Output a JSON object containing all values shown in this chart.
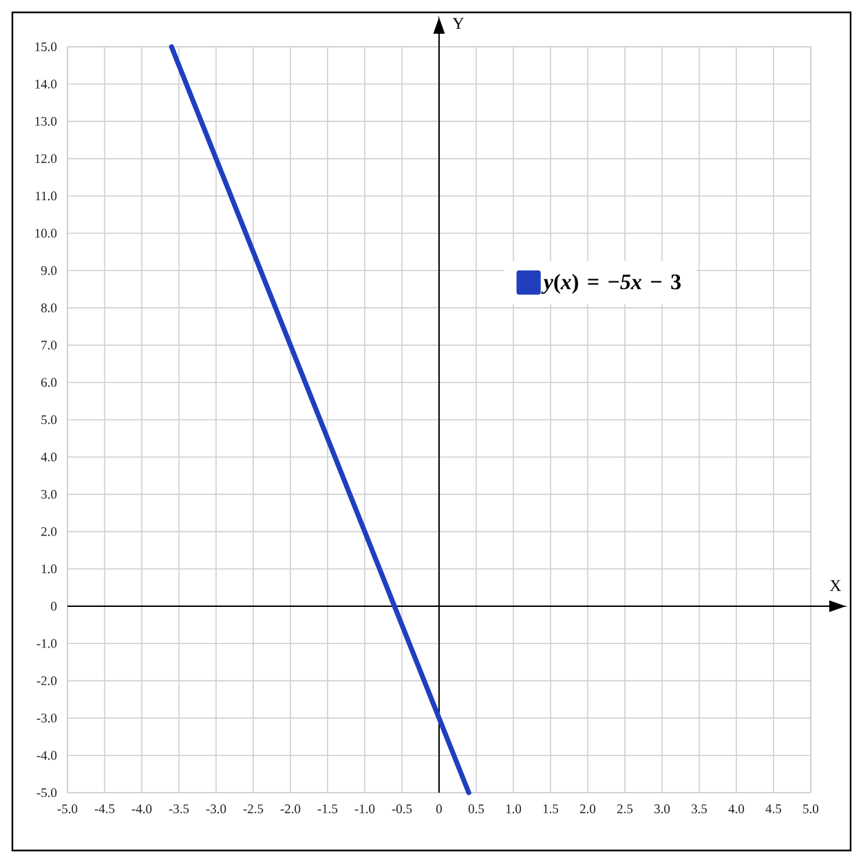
{
  "chart_data": {
    "type": "line",
    "xlabel": "X",
    "ylabel": "Y",
    "series": [
      {
        "name": "*y*(*x*) = −*5x* − 3",
        "color": "#1f3fbf",
        "x": [
          -3.6,
          0.4
        ],
        "values": [
          15,
          -5
        ]
      }
    ],
    "xlim": [
      -5,
      5
    ],
    "ylim": [
      -5,
      15
    ],
    "xticks": [
      {
        "value": -5,
        "label": "-5.0"
      },
      -4.5,
      {
        "value": -4,
        "label": "-4.0"
      },
      -3.5,
      {
        "value": -3,
        "label": "-3.0"
      },
      -2.5,
      {
        "value": -2,
        "label": "-2.0"
      },
      -1.5,
      {
        "value": -1,
        "label": "-1.0"
      },
      -0.5,
      0,
      0.5,
      {
        "value": 1,
        "label": "1.0"
      },
      1.5,
      {
        "value": 2,
        "label": "2.0"
      },
      2.5,
      {
        "value": 3,
        "label": "3.0"
      },
      3.5,
      {
        "value": 4,
        "label": "4.0"
      },
      4.5,
      {
        "value": 5,
        "label": "5.0"
      }
    ],
    "yticks": [
      {
        "value": -5,
        "label": "-5.0"
      },
      {
        "value": -4,
        "label": "-4.0"
      },
      {
        "value": -3,
        "label": "-3.0"
      },
      {
        "value": -2,
        "label": "-2.0"
      },
      {
        "value": -1,
        "label": "-1.0"
      },
      0,
      {
        "value": 1,
        "label": "1.0"
      },
      {
        "value": 2,
        "label": "2.0"
      },
      {
        "value": 3,
        "label": "3.0"
      },
      {
        "value": 4,
        "label": "4.0"
      },
      {
        "value": 5,
        "label": "5.0"
      },
      {
        "value": 6,
        "label": "6.0"
      },
      {
        "value": 7,
        "label": "7.0"
      },
      {
        "value": 8,
        "label": "8.0"
      },
      {
        "value": 9,
        "label": "9.0"
      },
      {
        "value": 10,
        "label": "10.0"
      },
      {
        "value": 11,
        "label": "11.0"
      },
      {
        "value": 12,
        "label": "12.0"
      },
      {
        "value": 13,
        "label": "13.0"
      },
      {
        "value": 14,
        "label": "14.0"
      },
      {
        "value": 15,
        "label": "15.0"
      }
    ],
    "grid": true,
    "legend": "top right",
    "marker": "none",
    "line_style": "solid"
  }
}
